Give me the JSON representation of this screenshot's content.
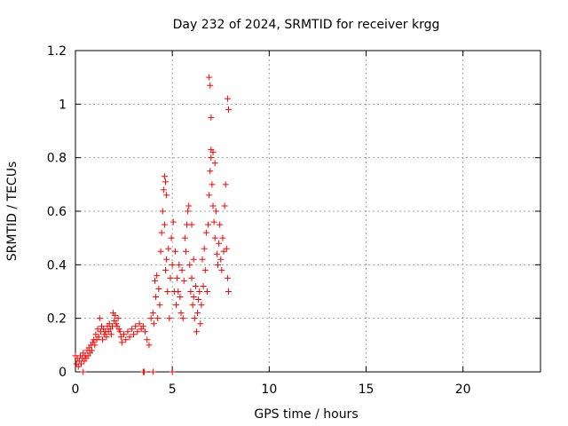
{
  "chart_data": {
    "type": "scatter",
    "title": "Day 232 of 2024, SRMTID for receiver krgg",
    "xlabel": "GPS time / hours",
    "ylabel": "SRMTID / TECUs",
    "xlim": [
      0,
      24
    ],
    "ylim": [
      0,
      1.2
    ],
    "x_ticks": [
      "0",
      "5",
      "10",
      "15",
      "20"
    ],
    "y_ticks": [
      "0",
      "0.2",
      "0.4",
      "0.6",
      "0.8",
      "1",
      "1.2"
    ],
    "marker": "+",
    "grid": true,
    "series": [
      {
        "name": "SRMTID",
        "color": "#ff0000",
        "x": [
          0.0,
          0.05,
          0.1,
          0.15,
          0.2,
          0.25,
          0.3,
          0.35,
          0.4,
          0.45,
          0.5,
          0.55,
          0.6,
          0.65,
          0.7,
          0.75,
          0.8,
          0.85,
          0.9,
          0.95,
          1.0,
          1.05,
          1.1,
          1.15,
          1.2,
          1.25,
          1.3,
          1.35,
          1.4,
          1.45,
          1.5,
          1.55,
          1.6,
          1.65,
          1.7,
          1.75,
          1.8,
          1.85,
          1.9,
          1.95,
          2.0,
          2.05,
          2.1,
          2.15,
          2.2,
          2.25,
          2.3,
          2.35,
          2.4,
          2.5,
          2.6,
          2.7,
          2.8,
          2.9,
          3.0,
          3.1,
          3.2,
          3.3,
          3.4,
          3.5,
          3.6,
          3.7,
          3.8,
          3.9,
          4.0,
          4.05,
          4.1,
          4.15,
          4.2,
          4.25,
          4.3,
          4.35,
          4.4,
          4.45,
          4.5,
          4.55,
          4.6,
          4.65,
          4.7,
          4.75,
          4.8,
          4.85,
          4.9,
          4.95,
          5.0,
          5.05,
          5.1,
          5.15,
          5.2,
          5.25,
          5.3,
          5.35,
          5.4,
          5.45,
          5.5,
          5.55,
          5.6,
          5.65,
          5.7,
          5.75,
          5.8,
          5.85,
          5.9,
          5.95,
          6.0,
          6.05,
          6.1,
          6.15,
          6.2,
          6.25,
          6.3,
          6.35,
          6.4,
          6.45,
          6.5,
          6.55,
          6.6,
          6.65,
          6.7,
          6.75,
          6.8,
          6.85,
          6.9,
          6.95,
          7.0,
          7.05,
          7.1,
          7.15,
          7.2,
          7.25,
          7.3,
          7.35,
          7.4,
          7.45,
          7.5,
          7.55,
          7.6,
          7.65,
          7.7,
          7.75,
          7.8,
          7.85,
          7.9,
          6.9,
          6.95,
          7.0,
          7.0,
          7.85,
          7.9,
          4.6,
          4.65,
          4.7,
          6.0,
          6.1,
          7.1,
          7.2,
          0.4,
          3.5,
          3.55,
          4.0,
          5.0
        ],
        "y": [
          0.06,
          0.03,
          0.05,
          0.02,
          0.04,
          0.06,
          0.03,
          0.05,
          0.07,
          0.04,
          0.06,
          0.05,
          0.08,
          0.06,
          0.09,
          0.07,
          0.1,
          0.08,
          0.11,
          0.12,
          0.1,
          0.14,
          0.12,
          0.16,
          0.13,
          0.2,
          0.15,
          0.17,
          0.12,
          0.16,
          0.14,
          0.15,
          0.13,
          0.17,
          0.15,
          0.18,
          0.16,
          0.14,
          0.17,
          0.22,
          0.19,
          0.21,
          0.18,
          0.17,
          0.2,
          0.16,
          0.15,
          0.13,
          0.11,
          0.14,
          0.12,
          0.15,
          0.13,
          0.16,
          0.14,
          0.17,
          0.15,
          0.18,
          0.16,
          0.17,
          0.15,
          0.12,
          0.1,
          0.2,
          0.22,
          0.18,
          0.34,
          0.28,
          0.36,
          0.2,
          0.31,
          0.25,
          0.45,
          0.52,
          0.6,
          0.68,
          0.55,
          0.38,
          0.42,
          0.3,
          0.46,
          0.2,
          0.35,
          0.5,
          0.4,
          0.56,
          0.3,
          0.45,
          0.25,
          0.35,
          0.3,
          0.4,
          0.28,
          0.22,
          0.38,
          0.2,
          0.34,
          0.5,
          0.45,
          0.55,
          0.6,
          0.62,
          0.4,
          0.3,
          0.35,
          0.25,
          0.28,
          0.2,
          0.32,
          0.15,
          0.22,
          0.27,
          0.3,
          0.18,
          0.25,
          0.42,
          0.32,
          0.46,
          0.38,
          0.52,
          0.3,
          0.55,
          0.66,
          0.75,
          0.8,
          0.7,
          0.62,
          0.56,
          0.5,
          0.6,
          0.44,
          0.4,
          0.48,
          0.55,
          0.42,
          0.38,
          0.5,
          0.45,
          0.62,
          0.7,
          0.46,
          0.35,
          0.3,
          1.1,
          1.07,
          0.95,
          0.83,
          1.02,
          0.98,
          0.73,
          0.71,
          0.66,
          0.55,
          0.42,
          0.82,
          0.78,
          0.0,
          0.0,
          0.0,
          0.0,
          0.0
        ]
      }
    ]
  }
}
